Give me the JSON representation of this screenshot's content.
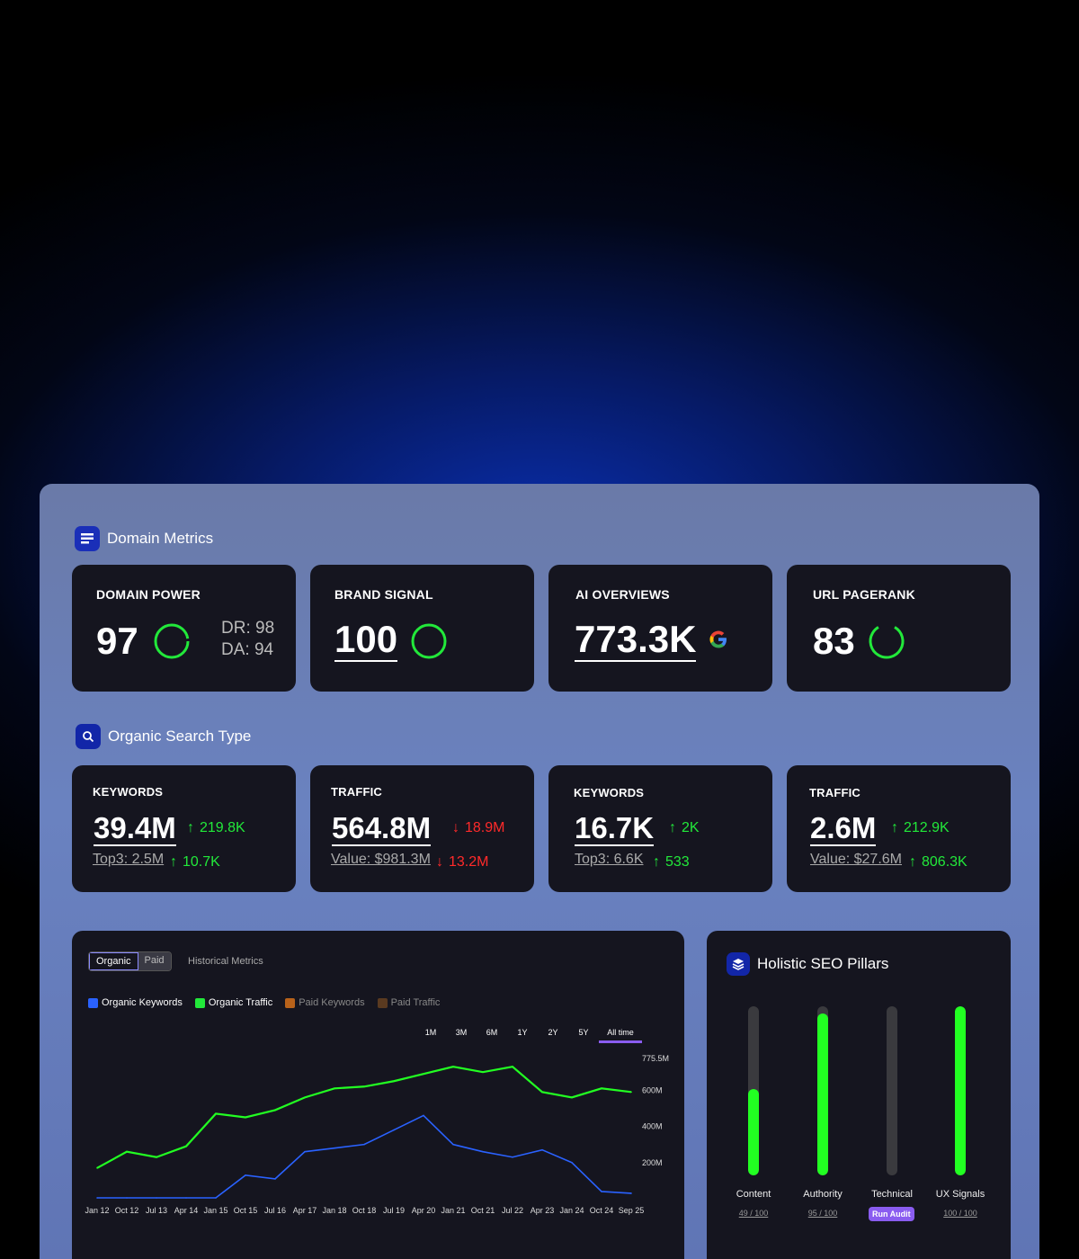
{
  "domain_metrics": {
    "title": "Domain Metrics",
    "domain_power": {
      "label": "DOMAIN POWER",
      "value": "97",
      "dr": "DR: 98",
      "da": "DA: 94"
    },
    "brand_signal": {
      "label": "BRAND SIGNAL",
      "value": "100"
    },
    "ai_overviews": {
      "label": "AI OVERVIEWS",
      "value": "773.3K",
      "icon": "google-icon"
    },
    "url_pagerank": {
      "label": "URL PAGERANK",
      "value": "83"
    }
  },
  "organic": {
    "title": "Organic Search Type",
    "cards": [
      {
        "label": "KEYWORDS",
        "value": "39.4M",
        "delta": "219.8K",
        "delta_dir": "up",
        "sub": "Top3: 2.5M",
        "sub_delta": "10.7K",
        "sub_dir": "up"
      },
      {
        "label": "TRAFFIC",
        "value": "564.8M",
        "delta": "18.9M",
        "delta_dir": "down",
        "sub": "Value: $981.3M",
        "sub_delta": "13.2M",
        "sub_dir": "down"
      },
      {
        "label": "KEYWORDS",
        "value": "16.7K",
        "delta": "2K",
        "delta_dir": "up",
        "sub": "Top3: 6.6K",
        "sub_delta": "533",
        "sub_dir": "up"
      },
      {
        "label": "TRAFFIC",
        "value": "2.6M",
        "delta": "212.9K",
        "delta_dir": "up",
        "sub": "Value: $27.6M",
        "sub_delta": "806.3K",
        "sub_dir": "up"
      }
    ]
  },
  "chart": {
    "tabs": [
      "Organic",
      "Paid"
    ],
    "historical": "Historical Metrics",
    "legend": [
      "Organic Keywords",
      "Organic Traffic",
      "Paid Keywords",
      "Paid Traffic"
    ],
    "ranges": [
      "1M",
      "3M",
      "6M",
      "1Y",
      "2Y",
      "5Y",
      "All time"
    ],
    "y_labels": [
      "775.5M",
      "600M",
      "400M",
      "200M"
    ],
    "x_labels": [
      "Jan 12",
      "Oct 12",
      "Jul 13",
      "Apr 14",
      "Jan 15",
      "Oct 15",
      "Jul 16",
      "Apr 17",
      "Jan 18",
      "Oct 18",
      "Jul 19",
      "Apr 20",
      "Jan 21",
      "Oct 21",
      "Jul 22",
      "Apr 23",
      "Jan 24",
      "Oct 24",
      "Sep 25"
    ]
  },
  "chart_data": {
    "type": "line",
    "x": [
      "Jan 12",
      "Oct 12",
      "Jul 13",
      "Apr 14",
      "Jan 15",
      "Oct 15",
      "Jul 16",
      "Apr 17",
      "Jan 18",
      "Oct 18",
      "Jul 19",
      "Apr 20",
      "Jan 21",
      "Oct 21",
      "Jul 22",
      "Apr 23",
      "Jan 24",
      "Oct 24",
      "Sep 25"
    ],
    "ylim": [
      0,
      775.5
    ],
    "series": [
      {
        "name": "Organic Traffic",
        "color": "#22ff22",
        "values": [
          170,
          260,
          230,
          290,
          470,
          450,
          490,
          560,
          610,
          620,
          650,
          690,
          730,
          700,
          730,
          590,
          560,
          610,
          590
        ]
      },
      {
        "name": "Organic Keywords",
        "color": "#2a62ff",
        "values": [
          5,
          5,
          5,
          5,
          5,
          130,
          110,
          260,
          280,
          300,
          380,
          460,
          300,
          260,
          230,
          270,
          200,
          40,
          30
        ]
      }
    ]
  },
  "pillars": {
    "title": "Holistic SEO Pillars",
    "items": [
      {
        "name": "Content",
        "score": "49 / 100",
        "fill": 0.51
      },
      {
        "name": "Authority",
        "score": "95 / 100",
        "fill": 0.96
      },
      {
        "name": "Technical",
        "score": "Run Audit",
        "fill": 0
      },
      {
        "name": "UX Signals",
        "score": "100 / 100",
        "fill": 1.0
      }
    ]
  }
}
